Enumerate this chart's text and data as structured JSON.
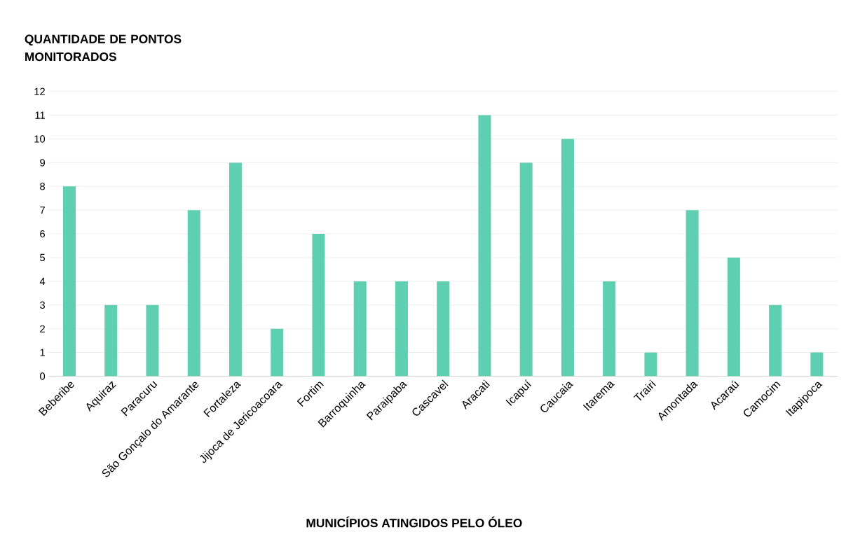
{
  "chart_data": {
    "type": "bar",
    "ylabel": "QUANTIDADE DE PONTOS MONITORADOS",
    "xlabel": "MUNICÍPIOS ATINGIDOS PELO ÓLEO",
    "categories": [
      "Beberibe",
      "Aquiraz",
      "Paracuru",
      "São Gonçalo do Amarante",
      "Fortaleza",
      "Jijoca de Jericoacoara",
      "Fortim",
      "Barroquinha",
      "Paraipaba",
      "Cascavel",
      "Aracati",
      "Icapuí",
      "Caucaia",
      "Itarema",
      "Trairi",
      "Amontada",
      "Acaraú",
      "Camocim",
      "Itapipoca"
    ],
    "values": [
      8,
      3,
      3,
      7,
      9,
      2,
      6,
      4,
      4,
      4,
      11,
      9,
      10,
      4,
      1,
      7,
      5,
      3,
      1
    ],
    "color": "#5ecfb1",
    "ylim": [
      0,
      12
    ],
    "yticks": [
      0,
      1,
      2,
      3,
      4,
      5,
      6,
      7,
      8,
      9,
      10,
      11,
      12
    ],
    "grid": "y"
  }
}
